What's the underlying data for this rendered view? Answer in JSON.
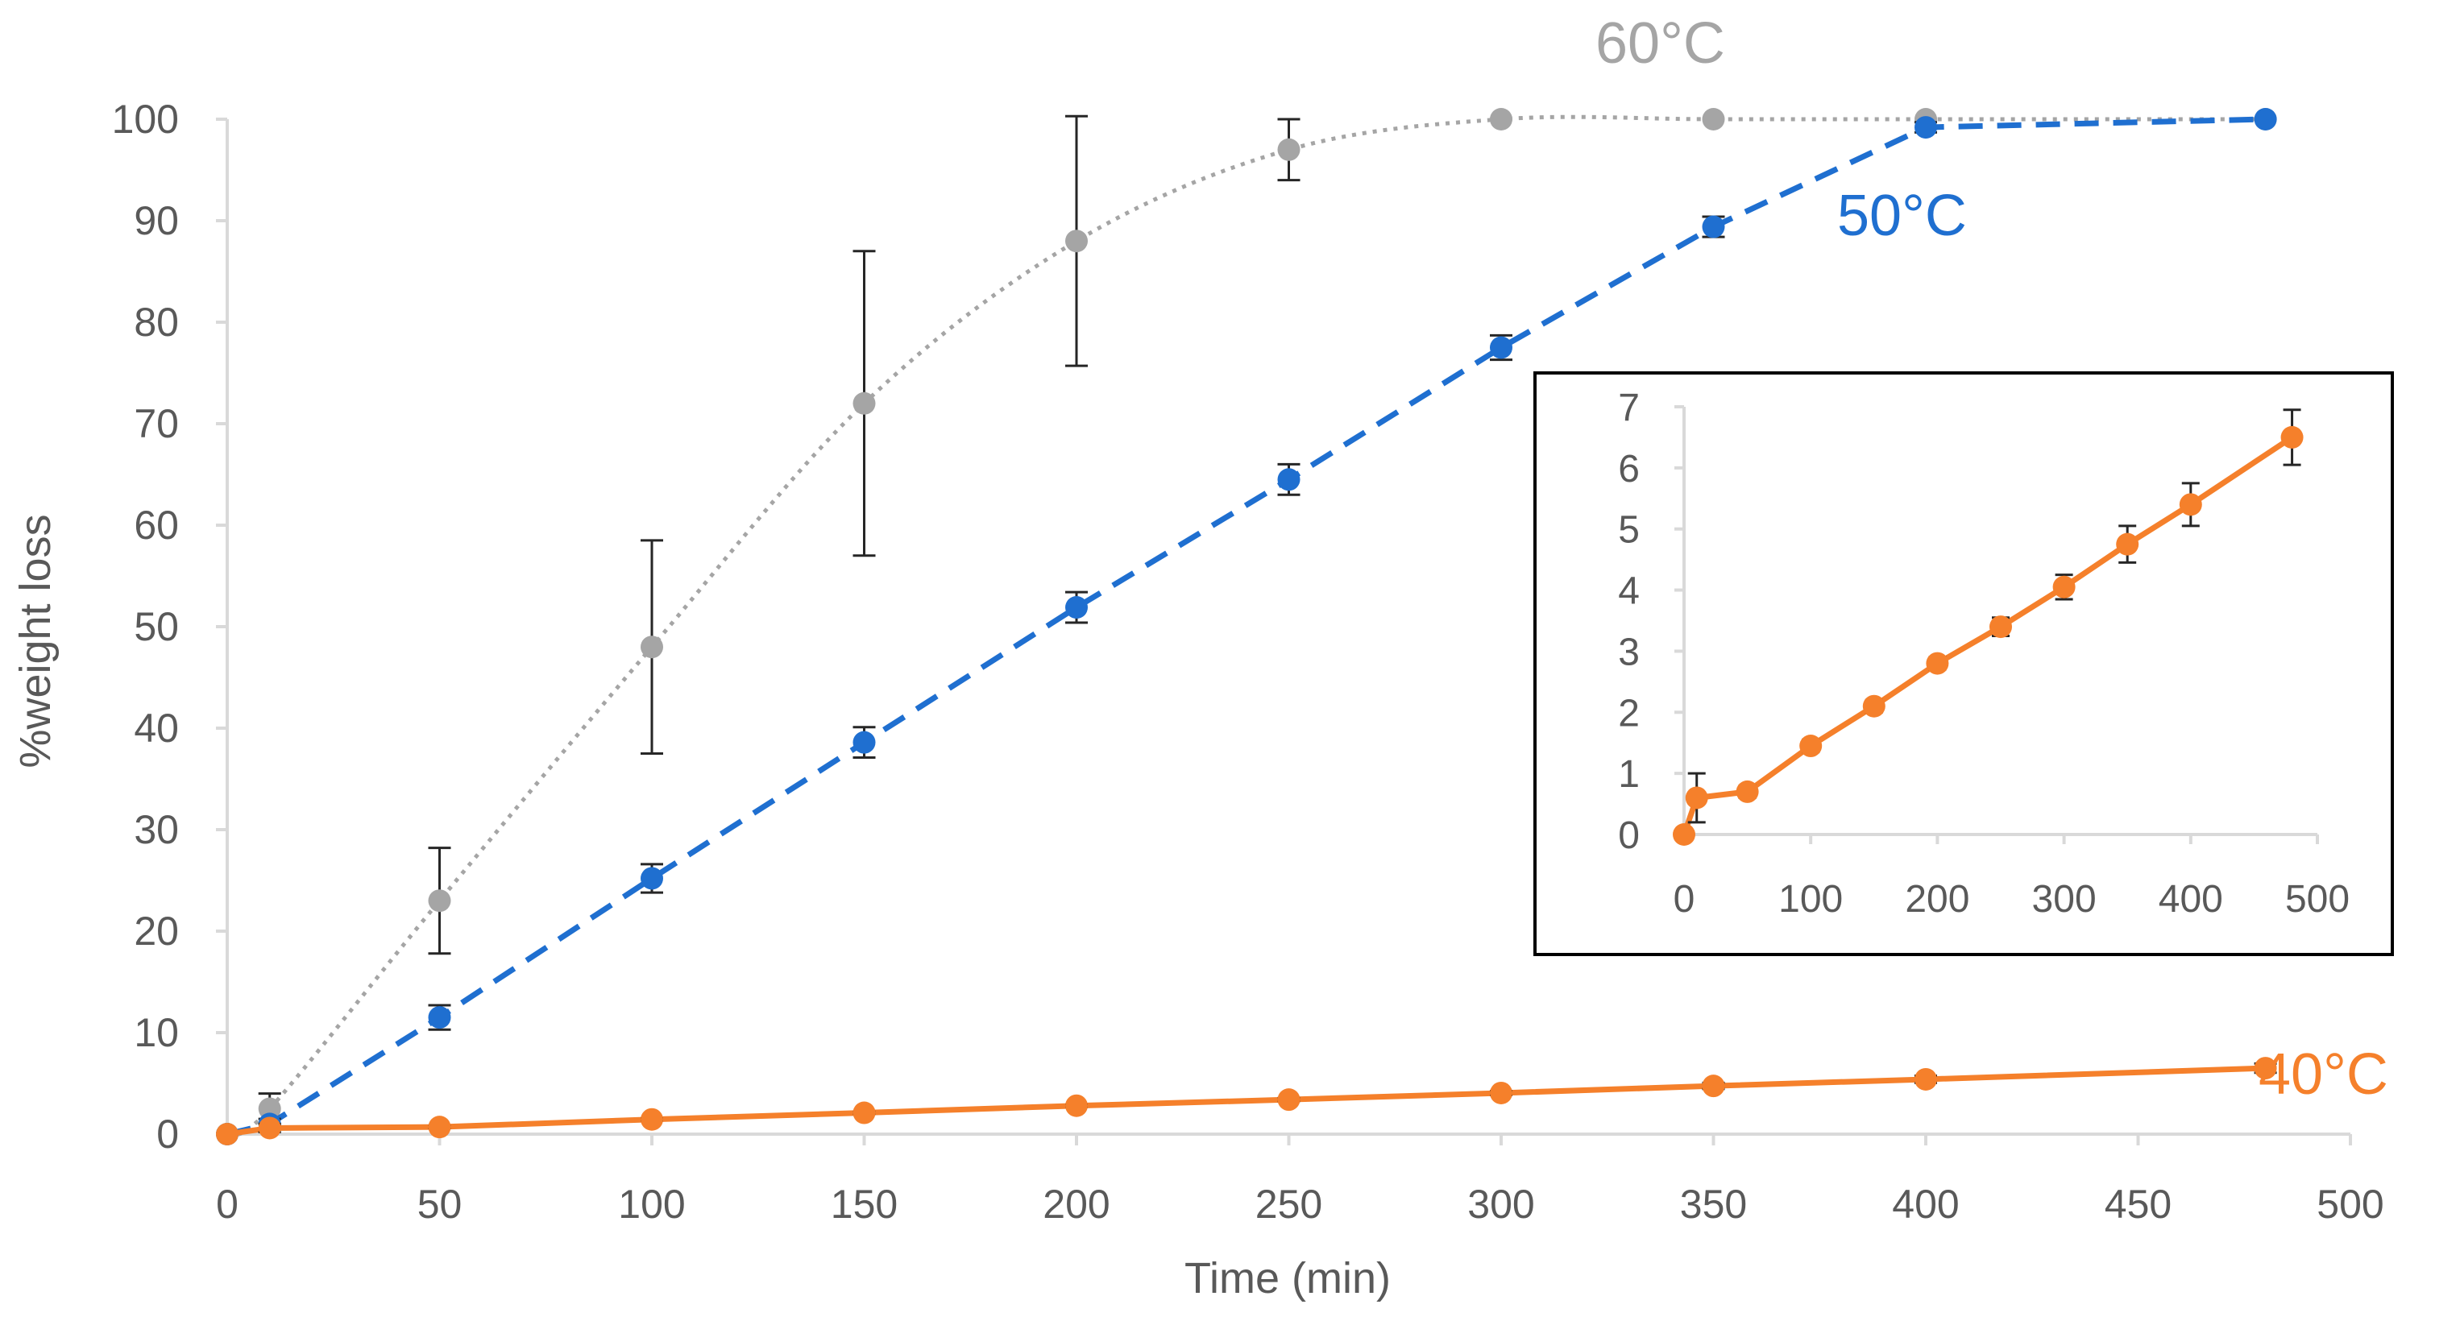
{
  "chart_data": {
    "main": {
      "type": "line",
      "xlabel": "Time (min)",
      "ylabel": "%weight loss",
      "xlim": [
        0,
        500
      ],
      "ylim": [
        0,
        100
      ],
      "xticks": [
        0,
        50,
        100,
        150,
        200,
        250,
        300,
        350,
        400,
        450,
        500
      ],
      "yticks": [
        0,
        10,
        20,
        30,
        40,
        50,
        60,
        70,
        80,
        90,
        100
      ],
      "series": [
        {
          "name": "60°C",
          "color": "#a5a5a5",
          "style": "dotted-smooth",
          "x": [
            0,
            10,
            50,
            100,
            150,
            200,
            250,
            300,
            350,
            400,
            480
          ],
          "y": [
            0,
            2.5,
            23,
            48,
            72,
            88,
            97,
            100,
            100,
            100,
            100
          ],
          "err": [
            0,
            1.5,
            5.2,
            10.5,
            15,
            12.3,
            3,
            0,
            0,
            0,
            0
          ]
        },
        {
          "name": "50°C",
          "color": "#1f6fd0",
          "style": "dashed",
          "x": [
            0,
            10,
            50,
            100,
            150,
            200,
            250,
            300,
            350,
            400,
            480
          ],
          "y": [
            0,
            1,
            11.5,
            25.2,
            38.6,
            51.9,
            64.5,
            77.5,
            89.4,
            99.2,
            100
          ],
          "err": [
            0,
            0.5,
            1.2,
            1.4,
            1.5,
            1.5,
            1.5,
            1.2,
            1.0,
            0.5,
            0
          ]
        },
        {
          "name": "40°C",
          "color": "#f5802b",
          "style": "solid",
          "x": [
            0,
            10,
            50,
            100,
            150,
            200,
            250,
            300,
            350,
            400,
            480
          ],
          "y": [
            0,
            0.6,
            0.7,
            1.45,
            2.1,
            2.8,
            3.4,
            4.05,
            4.75,
            5.4,
            6.5
          ],
          "err": [
            0,
            0.4,
            0.1,
            0.1,
            0.1,
            0.1,
            0.15,
            0.2,
            0.3,
            0.35,
            0.45
          ]
        }
      ],
      "labels": {
        "s60": "60°C",
        "s50": "50°C",
        "s40": "40°C"
      }
    },
    "inset": {
      "type": "line",
      "xlim": [
        0,
        500
      ],
      "ylim": [
        0,
        7
      ],
      "xticks": [
        0,
        100,
        200,
        300,
        400,
        500
      ],
      "yticks": [
        0,
        1,
        2,
        3,
        4,
        5,
        6,
        7
      ],
      "series": [
        {
          "name": "40°C",
          "color": "#f5802b",
          "x": [
            0,
            10,
            50,
            100,
            150,
            200,
            250,
            300,
            350,
            400,
            480
          ],
          "y": [
            0,
            0.6,
            0.7,
            1.45,
            2.1,
            2.8,
            3.4,
            4.05,
            4.75,
            5.4,
            6.5
          ],
          "err": [
            0,
            0.4,
            0.1,
            0.1,
            0.1,
            0.1,
            0.15,
            0.2,
            0.3,
            0.35,
            0.45
          ]
        }
      ]
    }
  }
}
